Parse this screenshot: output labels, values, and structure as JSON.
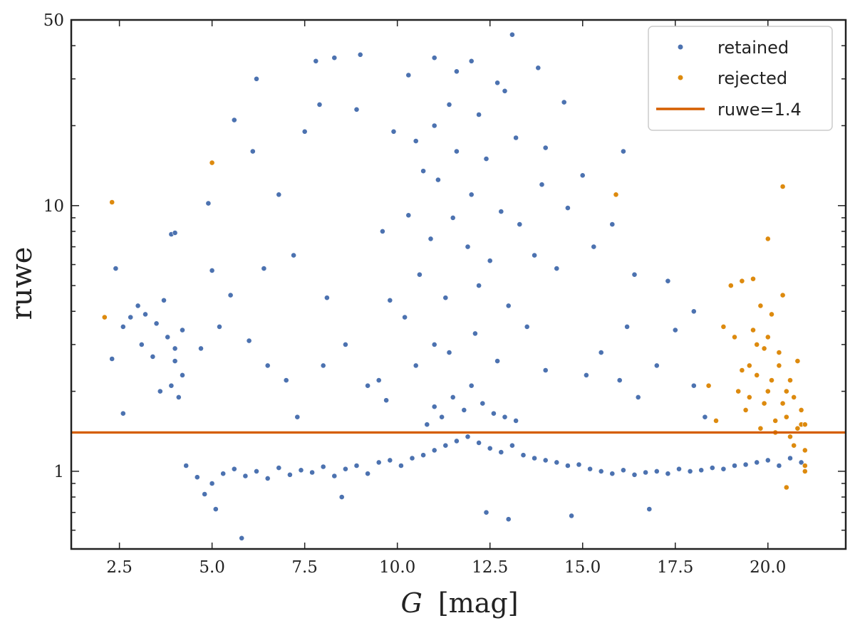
{
  "chart_data": {
    "type": "scatter",
    "xlabel_var": "G",
    "xlabel_unit": "[mag]",
    "ylabel": "ruwe",
    "xlim": [
      1.2,
      22.1
    ],
    "ylim": [
      0.51,
      50
    ],
    "yscale": "log",
    "xticks": [
      2.5,
      5.0,
      7.5,
      10.0,
      12.5,
      15.0,
      17.5,
      20.0
    ],
    "xtick_labels": [
      "2.5",
      "5.0",
      "7.5",
      "10.0",
      "12.5",
      "15.0",
      "17.5",
      "20.0"
    ],
    "yticks_major": [
      1,
      10,
      50
    ],
    "ytick_labels": [
      "1",
      "10",
      "50"
    ],
    "grid": false,
    "legend_position": "top-right",
    "series": [
      {
        "name": "retained",
        "color": "#4c72b0",
        "points": [
          [
            4.3,
            1.05
          ],
          [
            4.6,
            0.95
          ],
          [
            4.8,
            0.82
          ],
          [
            5.0,
            0.9
          ],
          [
            5.3,
            0.98
          ],
          [
            5.6,
            1.02
          ],
          [
            5.9,
            0.96
          ],
          [
            6.2,
            1.0
          ],
          [
            6.5,
            0.94
          ],
          [
            6.8,
            1.03
          ],
          [
            7.1,
            0.97
          ],
          [
            7.4,
            1.01
          ],
          [
            7.7,
            0.99
          ],
          [
            8.0,
            1.04
          ],
          [
            8.3,
            0.96
          ],
          [
            8.6,
            1.02
          ],
          [
            8.9,
            1.05
          ],
          [
            9.2,
            0.98
          ],
          [
            9.5,
            1.08
          ],
          [
            9.8,
            1.1
          ],
          [
            10.1,
            1.05
          ],
          [
            10.4,
            1.12
          ],
          [
            10.7,
            1.15
          ],
          [
            11.0,
            1.2
          ],
          [
            11.3,
            1.25
          ],
          [
            11.6,
            1.3
          ],
          [
            11.9,
            1.35
          ],
          [
            12.2,
            1.28
          ],
          [
            12.5,
            1.22
          ],
          [
            12.8,
            1.18
          ],
          [
            13.1,
            1.25
          ],
          [
            13.4,
            1.15
          ],
          [
            13.7,
            1.12
          ],
          [
            14.0,
            1.1
          ],
          [
            14.3,
            1.08
          ],
          [
            14.6,
            1.05
          ],
          [
            14.9,
            1.06
          ],
          [
            15.2,
            1.02
          ],
          [
            15.5,
            1.0
          ],
          [
            15.8,
            0.98
          ],
          [
            16.1,
            1.01
          ],
          [
            16.4,
            0.97
          ],
          [
            16.7,
            0.99
          ],
          [
            17.0,
            1.0
          ],
          [
            17.3,
            0.98
          ],
          [
            17.6,
            1.02
          ],
          [
            17.9,
            1.0
          ],
          [
            18.2,
            1.01
          ],
          [
            18.5,
            1.03
          ],
          [
            18.8,
            1.02
          ],
          [
            19.1,
            1.05
          ],
          [
            19.4,
            1.06
          ],
          [
            19.7,
            1.08
          ],
          [
            20.0,
            1.1
          ],
          [
            20.3,
            1.05
          ],
          [
            20.6,
            1.12
          ],
          [
            20.9,
            1.08
          ],
          [
            5.1,
            0.72
          ],
          [
            5.8,
            0.56
          ],
          [
            13.0,
            0.66
          ],
          [
            12.4,
            0.7
          ],
          [
            8.5,
            0.8
          ],
          [
            16.8,
            0.72
          ],
          [
            14.7,
            0.68
          ],
          [
            11.2,
            1.6
          ],
          [
            11.8,
            1.7
          ],
          [
            12.3,
            1.8
          ],
          [
            11.5,
            1.9
          ],
          [
            12.0,
            2.1
          ],
          [
            12.6,
            1.65
          ],
          [
            13.2,
            1.55
          ],
          [
            10.8,
            1.5
          ],
          [
            11.0,
            1.75
          ],
          [
            12.9,
            1.6
          ],
          [
            10.5,
            2.5
          ],
          [
            11.0,
            3.0
          ],
          [
            11.4,
            2.8
          ],
          [
            12.1,
            3.3
          ],
          [
            12.7,
            2.6
          ],
          [
            13.5,
            3.5
          ],
          [
            10.2,
            3.8
          ],
          [
            14.0,
            2.4
          ],
          [
            9.5,
            2.2
          ],
          [
            15.1,
            2.3
          ],
          [
            11.3,
            4.5
          ],
          [
            12.2,
            5.0
          ],
          [
            13.0,
            4.2
          ],
          [
            10.6,
            5.5
          ],
          [
            14.3,
            5.8
          ],
          [
            9.8,
            4.4
          ],
          [
            12.5,
            6.2
          ],
          [
            11.9,
            7.0
          ],
          [
            13.7,
            6.5
          ],
          [
            10.9,
            7.5
          ],
          [
            11.5,
            9.0
          ],
          [
            12.8,
            9.5
          ],
          [
            10.3,
            9.2
          ],
          [
            13.3,
            8.5
          ],
          [
            14.6,
            9.8
          ],
          [
            9.6,
            8.0
          ],
          [
            12.0,
            11.0
          ],
          [
            11.1,
            12.5
          ],
          [
            13.9,
            12.0
          ],
          [
            10.7,
            13.5
          ],
          [
            11.6,
            16.0
          ],
          [
            12.4,
            15.0
          ],
          [
            10.5,
            17.5
          ],
          [
            13.2,
            18.0
          ],
          [
            11.0,
            20.0
          ],
          [
            12.2,
            22.0
          ],
          [
            9.9,
            19.0
          ],
          [
            14.0,
            16.5
          ],
          [
            11.4,
            24.0
          ],
          [
            12.9,
            27.0
          ],
          [
            9.0,
            37.0
          ],
          [
            11.0,
            36.0
          ],
          [
            12.0,
            35.0
          ],
          [
            13.1,
            44.0
          ],
          [
            8.3,
            36.0
          ],
          [
            10.3,
            31.0
          ],
          [
            12.7,
            29.0
          ],
          [
            13.8,
            33.0
          ],
          [
            7.8,
            35.0
          ],
          [
            11.6,
            32.0
          ],
          [
            6.2,
            30.0
          ],
          [
            7.9,
            24.0
          ],
          [
            8.9,
            23.0
          ],
          [
            5.6,
            21.0
          ],
          [
            7.5,
            19.0
          ],
          [
            6.1,
            16.0
          ],
          [
            14.5,
            24.5
          ],
          [
            16.1,
            16.0
          ],
          [
            15.0,
            13.0
          ],
          [
            6.8,
            11.0
          ],
          [
            3.0,
            4.2
          ],
          [
            3.2,
            3.9
          ],
          [
            3.5,
            3.6
          ],
          [
            3.7,
            4.4
          ],
          [
            2.8,
            3.8
          ],
          [
            3.1,
            3.0
          ],
          [
            3.4,
            2.7
          ],
          [
            3.8,
            3.2
          ],
          [
            4.0,
            2.9
          ],
          [
            2.6,
            3.5
          ],
          [
            3.9,
            2.1
          ],
          [
            4.1,
            1.9
          ],
          [
            4.2,
            2.3
          ],
          [
            3.6,
            2.0
          ],
          [
            4.0,
            2.6
          ],
          [
            4.2,
            3.4
          ],
          [
            3.9,
            7.8
          ],
          [
            4.0,
            7.9
          ],
          [
            2.4,
            5.8
          ],
          [
            2.6,
            1.65
          ],
          [
            2.3,
            2.65
          ],
          [
            4.7,
            2.9
          ],
          [
            5.2,
            3.5
          ],
          [
            5.5,
            4.6
          ],
          [
            6.0,
            3.1
          ],
          [
            6.5,
            2.5
          ],
          [
            7.0,
            2.2
          ],
          [
            7.3,
            1.6
          ],
          [
            8.0,
            2.5
          ],
          [
            8.6,
            3.0
          ],
          [
            9.2,
            2.1
          ],
          [
            9.7,
            1.85
          ],
          [
            15.5,
            2.8
          ],
          [
            16.0,
            2.2
          ],
          [
            16.5,
            1.9
          ],
          [
            17.0,
            2.5
          ],
          [
            17.5,
            3.4
          ],
          [
            18.0,
            2.1
          ],
          [
            18.3,
            1.6
          ],
          [
            17.3,
            5.2
          ],
          [
            18.0,
            4.0
          ],
          [
            16.2,
            3.5
          ],
          [
            15.3,
            7.0
          ],
          [
            16.4,
            5.5
          ],
          [
            15.8,
            8.5
          ],
          [
            4.9,
            10.2
          ],
          [
            5.0,
            5.7
          ],
          [
            6.4,
            5.8
          ],
          [
            7.2,
            6.5
          ],
          [
            8.1,
            4.5
          ]
        ]
      },
      {
        "name": "rejected",
        "color": "#dd8a0e",
        "points": [
          [
            2.1,
            3.8
          ],
          [
            2.3,
            10.3
          ],
          [
            5.0,
            14.5
          ],
          [
            15.9,
            11.0
          ],
          [
            18.6,
            1.55
          ],
          [
            18.8,
            3.5
          ],
          [
            19.0,
            5.0
          ],
          [
            19.3,
            5.2
          ],
          [
            19.6,
            5.3
          ],
          [
            20.0,
            7.5
          ],
          [
            20.4,
            11.8
          ],
          [
            20.5,
            0.87
          ],
          [
            21.0,
            1.0
          ],
          [
            19.2,
            2.0
          ],
          [
            19.5,
            2.5
          ],
          [
            19.7,
            3.0
          ],
          [
            19.9,
            1.8
          ],
          [
            20.1,
            2.2
          ],
          [
            20.3,
            2.8
          ],
          [
            20.5,
            1.6
          ],
          [
            20.7,
            1.9
          ],
          [
            20.9,
            1.5
          ],
          [
            19.4,
            1.7
          ],
          [
            19.8,
            1.45
          ],
          [
            20.2,
            1.4
          ],
          [
            20.6,
            1.35
          ],
          [
            21.0,
            1.5
          ],
          [
            19.6,
            3.4
          ],
          [
            20.0,
            3.2
          ],
          [
            20.4,
            4.6
          ],
          [
            20.8,
            2.6
          ],
          [
            19.3,
            2.4
          ],
          [
            20.6,
            2.2
          ],
          [
            19.9,
            2.9
          ],
          [
            20.2,
            1.55
          ],
          [
            20.7,
            1.25
          ],
          [
            21.0,
            1.2
          ],
          [
            19.5,
            1.9
          ],
          [
            20.1,
            3.9
          ],
          [
            20.5,
            2.0
          ],
          [
            18.4,
            2.1
          ],
          [
            19.1,
            3.2
          ],
          [
            19.8,
            4.2
          ],
          [
            20.3,
            2.5
          ],
          [
            20.9,
            1.7
          ],
          [
            20.0,
            2.0
          ],
          [
            20.4,
            1.8
          ],
          [
            19.7,
            2.3
          ],
          [
            20.8,
            1.45
          ],
          [
            21.0,
            1.05
          ]
        ]
      }
    ],
    "hline": {
      "label": "ruwe=1.4",
      "y": 1.4,
      "color": "#d55e00"
    },
    "legend": [
      {
        "label": "retained",
        "kind": "marker",
        "color": "#4c72b0"
      },
      {
        "label": "rejected",
        "kind": "marker",
        "color": "#dd8a0e"
      },
      {
        "label": "ruwe=1.4",
        "kind": "line",
        "color": "#d55e00"
      }
    ]
  }
}
